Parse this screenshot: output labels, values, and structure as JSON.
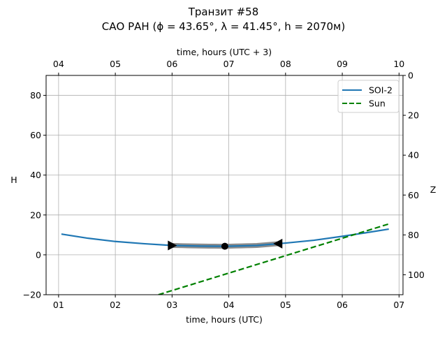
{
  "chart_data": {
    "type": "line",
    "title": "Транзит #58",
    "subtitle": "САО РАН (ϕ = 43.65°, λ = 41.45°, h = 2070м)",
    "xlabel": "time, hours (UTC)",
    "xlabel_top": "time, hours (UTC + 3)",
    "ylabel": "H",
    "ylabel_right": "Z",
    "xlim": [
      0.78,
      7.07
    ],
    "ylim": [
      -20,
      90
    ],
    "x_ticks": [
      1,
      2,
      3,
      4,
      5,
      6,
      7
    ],
    "x_tick_labels": [
      "01",
      "02",
      "03",
      "04",
      "05",
      "06",
      "07"
    ],
    "x_top_tick_labels": [
      "04",
      "05",
      "06",
      "07",
      "08",
      "09",
      "10"
    ],
    "y_ticks": [
      -20,
      0,
      20,
      40,
      60,
      80
    ],
    "y_tick_labels": [
      "−20",
      "0",
      "20",
      "40",
      "60",
      "80"
    ],
    "z_ticks": [
      0,
      20,
      40,
      60,
      80,
      100
    ],
    "z_tick_labels": [
      "0",
      "20",
      "40",
      "60",
      "80",
      "100"
    ],
    "grid": true,
    "legend_position": "top-right",
    "series": [
      {
        "name": "SOI-2",
        "color": "#1f77b4",
        "style": "solid",
        "x": [
          1.05,
          1.5,
          2.0,
          2.5,
          3.0,
          3.5,
          3.95,
          4.5,
          5.0,
          5.5,
          6.0,
          6.4,
          6.82
        ],
        "y": [
          10.4,
          8.4,
          6.7,
          5.6,
          4.7,
          4.4,
          4.3,
          4.7,
          5.9,
          7.3,
          9.3,
          11.0,
          12.9
        ]
      },
      {
        "name": "Sun",
        "color": "#008000",
        "style": "dashed",
        "x": [
          2.76,
          6.81
        ],
        "y": [
          -20,
          15.4
        ]
      }
    ],
    "transit_segment": {
      "x_start": 3.0,
      "x_end": 4.87,
      "color": "#808080"
    },
    "markers": [
      {
        "type": "triangle-right",
        "x": 3.0,
        "y": 4.7
      },
      {
        "type": "circle",
        "x": 3.93,
        "y": 4.3
      },
      {
        "type": "triangle-left",
        "x": 4.87,
        "y": 5.6
      }
    ]
  }
}
